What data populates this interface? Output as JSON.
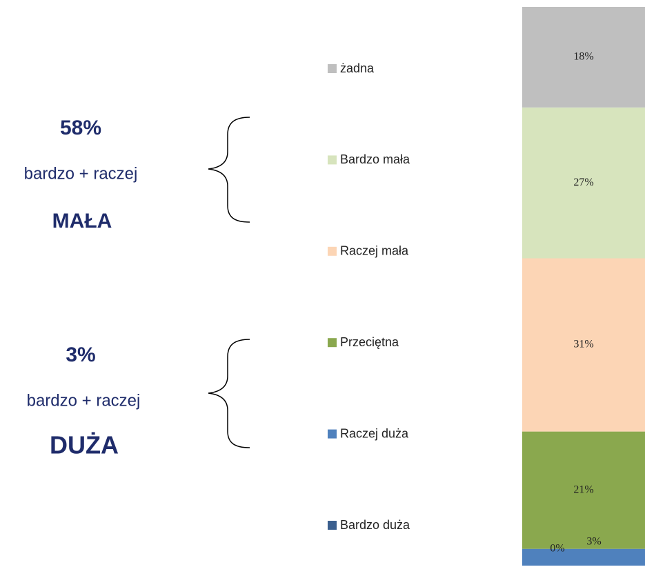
{
  "chart_data": {
    "type": "stacked-bar",
    "series": [
      {
        "name": "Bardzo duża",
        "color": "#3b5f8e",
        "values": [
          0
        ],
        "value_labels": [
          "0%"
        ]
      },
      {
        "name": "Raczej duża",
        "color": "#4f81bd",
        "values": [
          3
        ],
        "value_labels": [
          "3%"
        ]
      },
      {
        "name": "Przeciętna",
        "color": "#8aa84e",
        "values": [
          21
        ],
        "value_labels": [
          "21%"
        ]
      },
      {
        "name": "Raczej mała",
        "color": "#fcd5b5",
        "values": [
          31
        ],
        "value_labels": [
          "31%"
        ]
      },
      {
        "name": "Bardzo mała",
        "color": "#d7e4bd",
        "values": [
          27
        ],
        "value_labels": [
          "27%"
        ]
      },
      {
        "name": "żadna",
        "color": "#bfbfbf",
        "values": [
          18
        ],
        "value_labels": [
          "18%"
        ]
      }
    ],
    "ylim": [
      0,
      100
    ],
    "annotations": [
      "58%",
      "bardzo + raczej",
      "MAŁA",
      "3%",
      "bardzo + raczej",
      "DUŻA"
    ]
  }
}
